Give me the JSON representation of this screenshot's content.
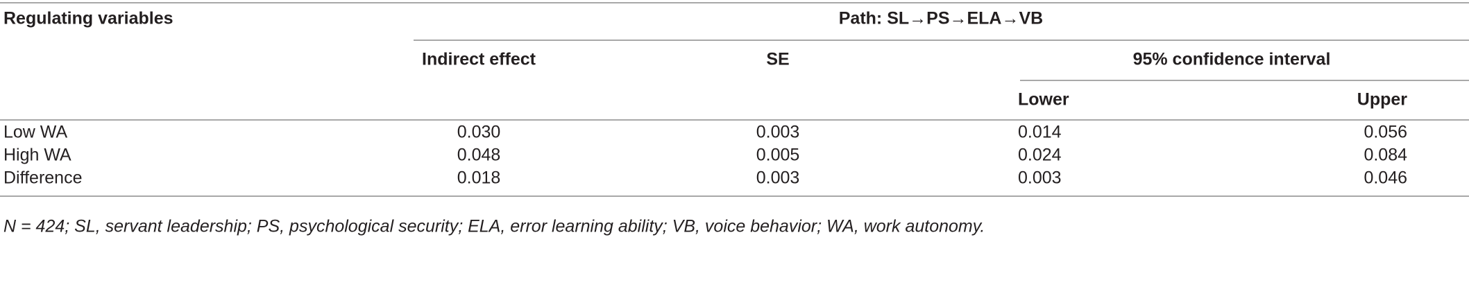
{
  "table": {
    "header": {
      "stub": "Regulating variables",
      "path": "Path: SL→PS→ELA→VB",
      "columns": [
        "Indirect effect",
        "SE",
        "95% confidence interval"
      ],
      "subcolumns": [
        "Lower",
        "Upper"
      ]
    },
    "rows": [
      [
        "Low WA",
        "0.030",
        "0.003",
        "0.014",
        "0.056"
      ],
      [
        "High WA",
        "0.048",
        "0.005",
        "0.024",
        "0.084"
      ],
      [
        "Difference",
        "0.018",
        "0.003",
        "0.003",
        "0.046"
      ]
    ],
    "footnote": "N = 424; SL, servant leadership; PS, psychological security; ELA, error learning ability; VB, voice behavior; WA, work autonomy."
  }
}
